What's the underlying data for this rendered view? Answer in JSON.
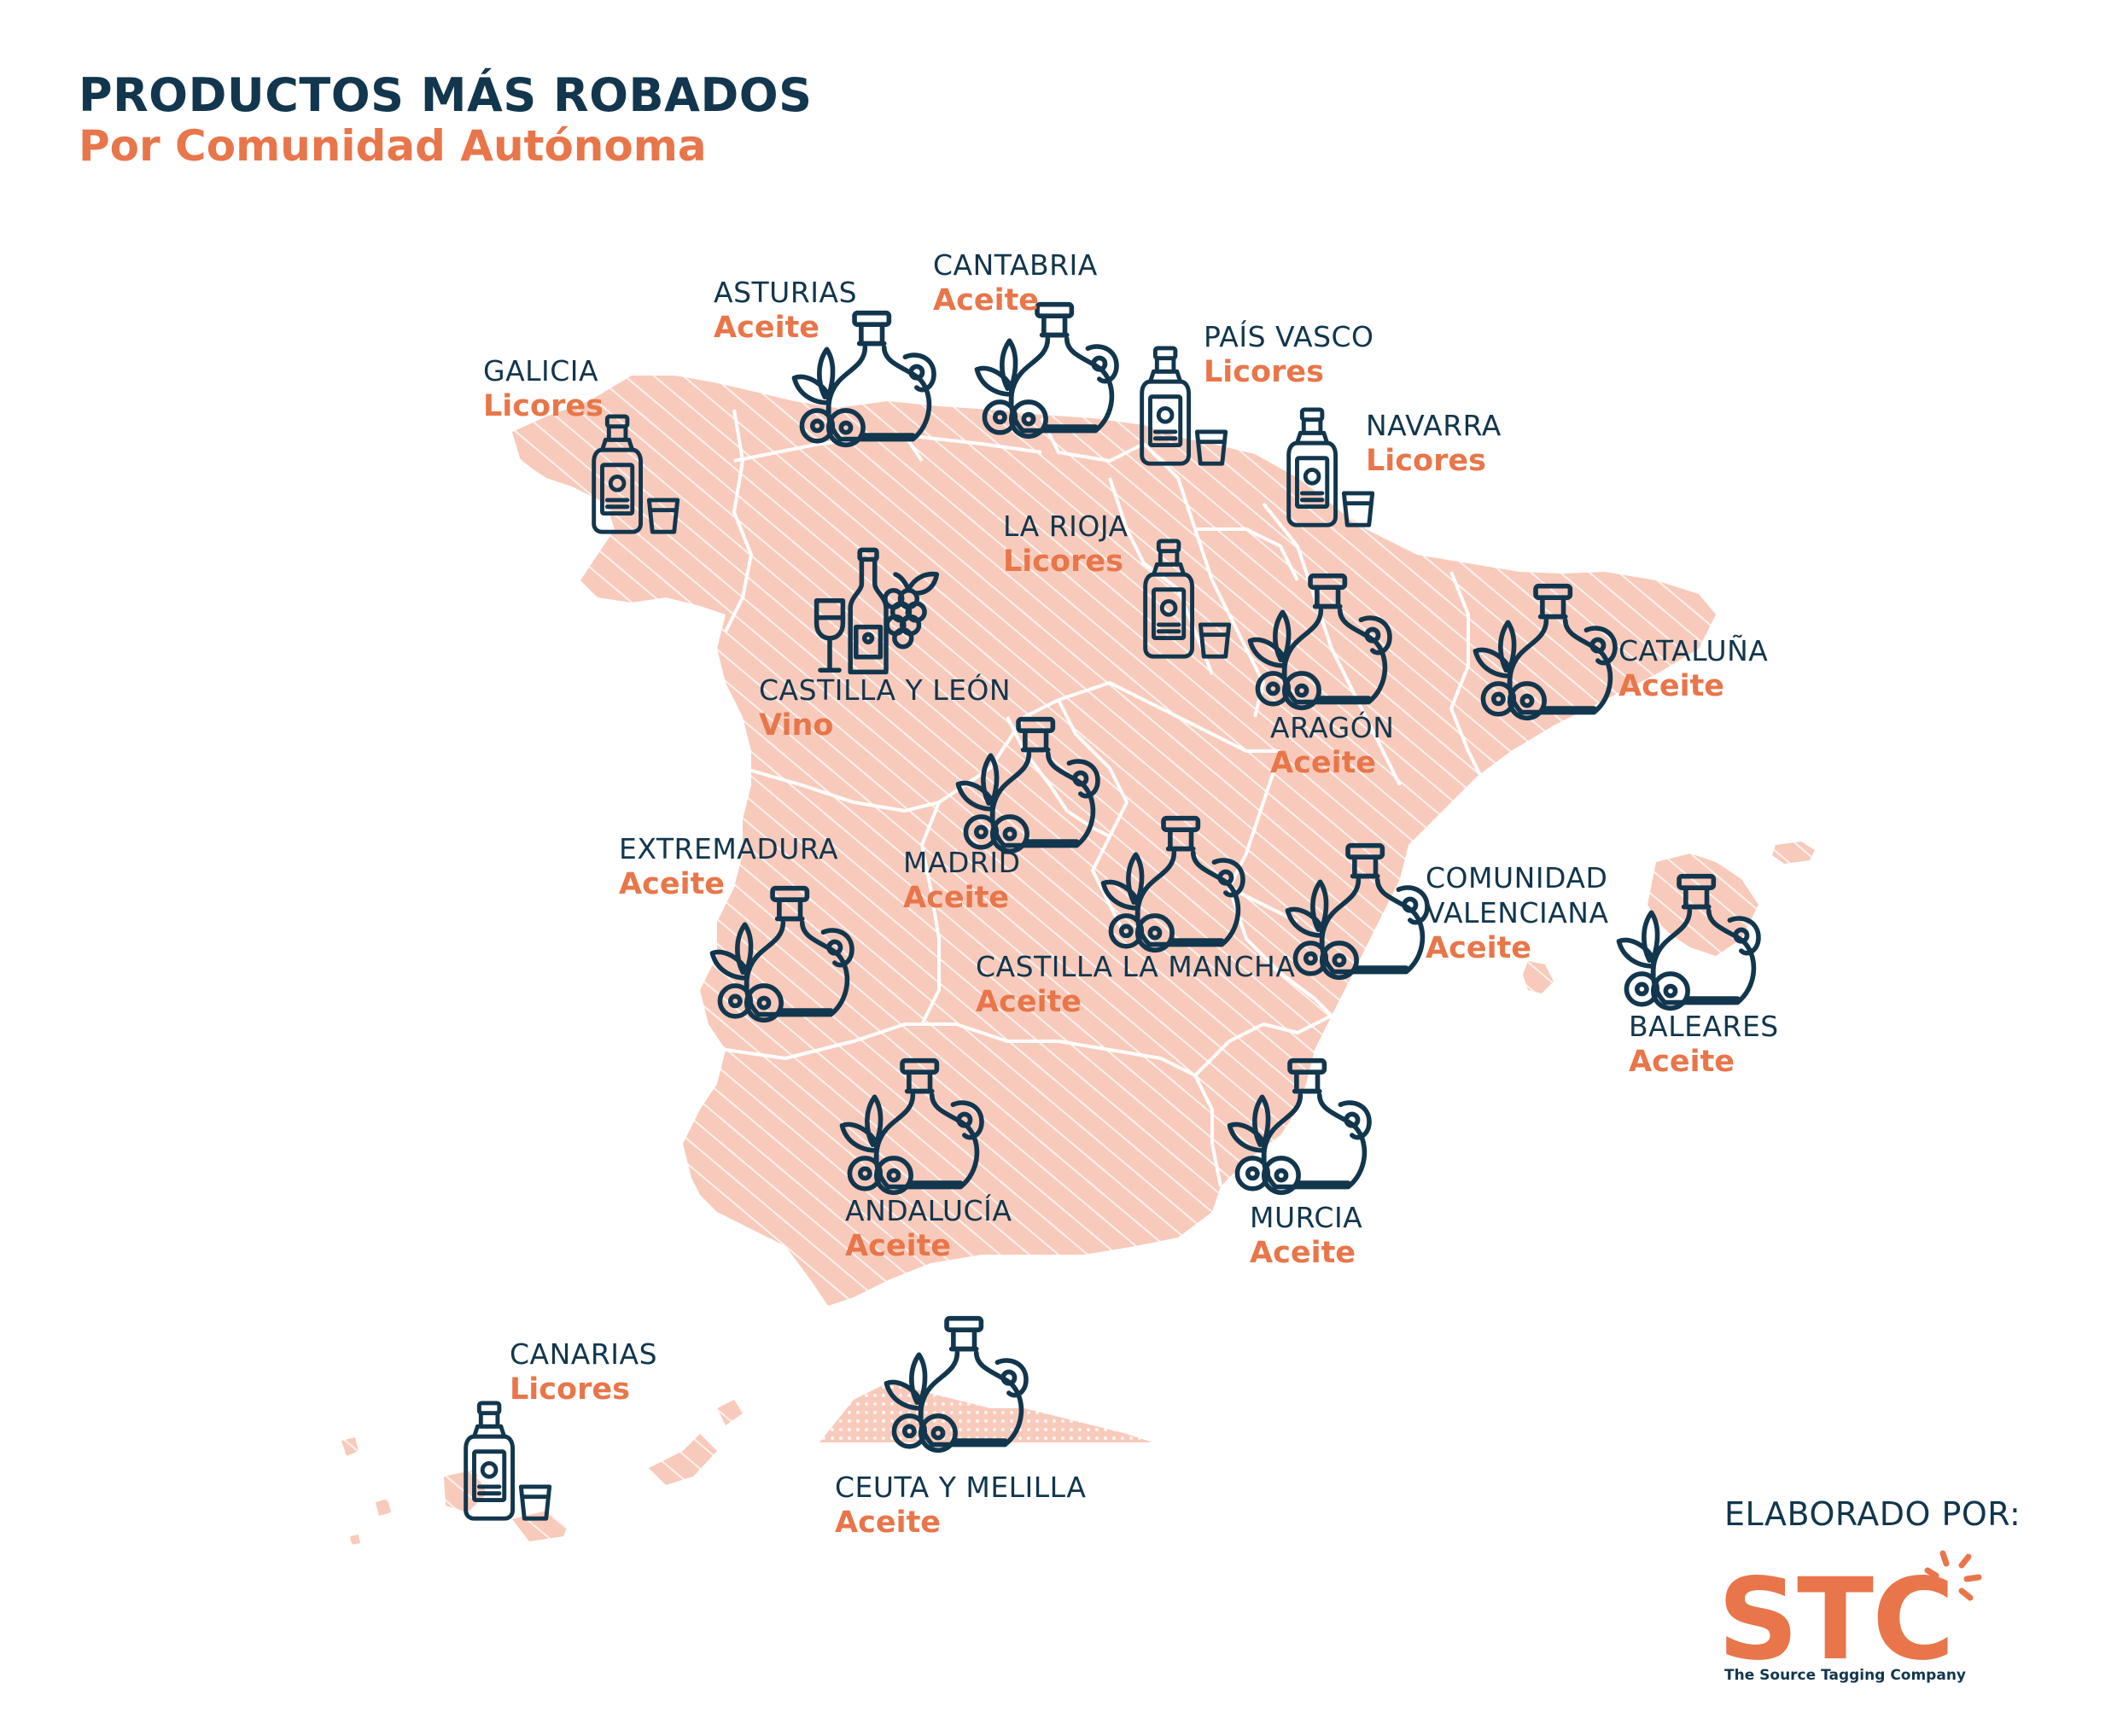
{
  "header": {
    "title": "PRODUCTOS MÁS ROBADOS",
    "subtitle": "Por Comunidad Autónoma"
  },
  "colors": {
    "navy": "#12364d",
    "orange": "#e8764a",
    "land": "#f8cabb",
    "border": "#ffffff"
  },
  "regions": [
    {
      "id": "galicia",
      "name": "GALICIA",
      "product": "Licores",
      "icon": "liquor-bottle-icon"
    },
    {
      "id": "asturias",
      "name": "ASTURIAS",
      "product": "Aceite",
      "icon": "oil-jar-icon"
    },
    {
      "id": "cantabria",
      "name": "CANTABRIA",
      "product": "Aceite",
      "icon": "oil-jar-icon"
    },
    {
      "id": "pais-vasco",
      "name": "PAÍS VASCO",
      "product": "Licores",
      "icon": "liquor-bottle-icon"
    },
    {
      "id": "navarra",
      "name": "NAVARRA",
      "product": "Licores",
      "icon": "liquor-bottle-icon"
    },
    {
      "id": "la-rioja",
      "name": "LA RIOJA",
      "product": "Licores",
      "icon": "liquor-bottle-icon"
    },
    {
      "id": "castilla-leon",
      "name": "CASTILLA Y LEÓN",
      "product": "Vino",
      "icon": "wine-grapes-icon"
    },
    {
      "id": "aragon",
      "name": "ARAGÓN",
      "product": "Aceite",
      "icon": "oil-jar-icon"
    },
    {
      "id": "cataluna",
      "name": "CATALUÑA",
      "product": "Aceite",
      "icon": "oil-jar-icon"
    },
    {
      "id": "madrid",
      "name": "MADRID",
      "product": "Aceite",
      "icon": "oil-jar-icon"
    },
    {
      "id": "extremadura",
      "name": "EXTREMADURA",
      "product": "Aceite",
      "icon": "oil-jar-icon"
    },
    {
      "id": "castilla-la-mancha",
      "name": "CASTILLA LA MANCHA",
      "product": "Aceite",
      "icon": "oil-jar-icon"
    },
    {
      "id": "comunidad-valenciana",
      "name": "COMUNIDAD VALENCIANA",
      "product": "Aceite",
      "icon": "oil-jar-icon"
    },
    {
      "id": "baleares",
      "name": "BALEARES",
      "product": "Aceite",
      "icon": "oil-jar-icon"
    },
    {
      "id": "murcia",
      "name": "MURCIA",
      "product": "Aceite",
      "icon": "oil-jar-icon"
    },
    {
      "id": "andalucia",
      "name": "ANDALUCÍA",
      "product": "Aceite",
      "icon": "oil-jar-icon"
    },
    {
      "id": "canarias",
      "name": "CANARIAS",
      "product": "Licores",
      "icon": "liquor-bottle-icon"
    },
    {
      "id": "ceuta-melilla",
      "name": "CEUTA Y MELILLA",
      "product": "Aceite",
      "icon": "oil-jar-icon"
    }
  ],
  "footer": {
    "credit": "ELABORADO POR:",
    "logo": "STC",
    "tagline": "The Source Tagging Company"
  }
}
